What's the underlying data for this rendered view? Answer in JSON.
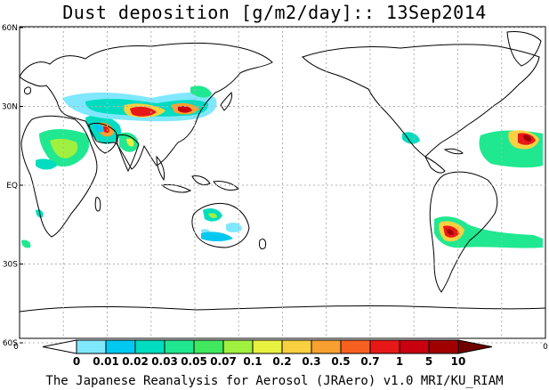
{
  "title": "Dust deposition [g/m2/day]:: 13Sep2014",
  "footer": "The Japanese Reanalysis for Aerosol (JRAero) v1.0 MRI/KU_RIAM",
  "axes": {
    "lat_labels": [
      "60N",
      "30N",
      "EQ",
      "30S",
      "60S"
    ],
    "lat_values": [
      60,
      30,
      0,
      -30,
      -60
    ],
    "left_bottom_label": "0",
    "right_bottom_label": "0"
  },
  "legend": {
    "levels": [
      "0",
      "0.01",
      "0.02",
      "0.03",
      "0.05",
      "0.07",
      "0.1",
      "0.2",
      "0.3",
      "0.5",
      "0.7",
      "1",
      "5",
      "10"
    ],
    "colors": [
      "#ffffff",
      "#7fe8ff",
      "#00c8f0",
      "#00dcc0",
      "#20e890",
      "#40e860",
      "#a0f040",
      "#e8f040",
      "#f8d040",
      "#f8a030",
      "#f86020",
      "#e81818",
      "#c80010",
      "#a00000",
      "#700000"
    ]
  },
  "colors": {
    "coast": "#000000",
    "grid": "#b0b0b0"
  }
}
